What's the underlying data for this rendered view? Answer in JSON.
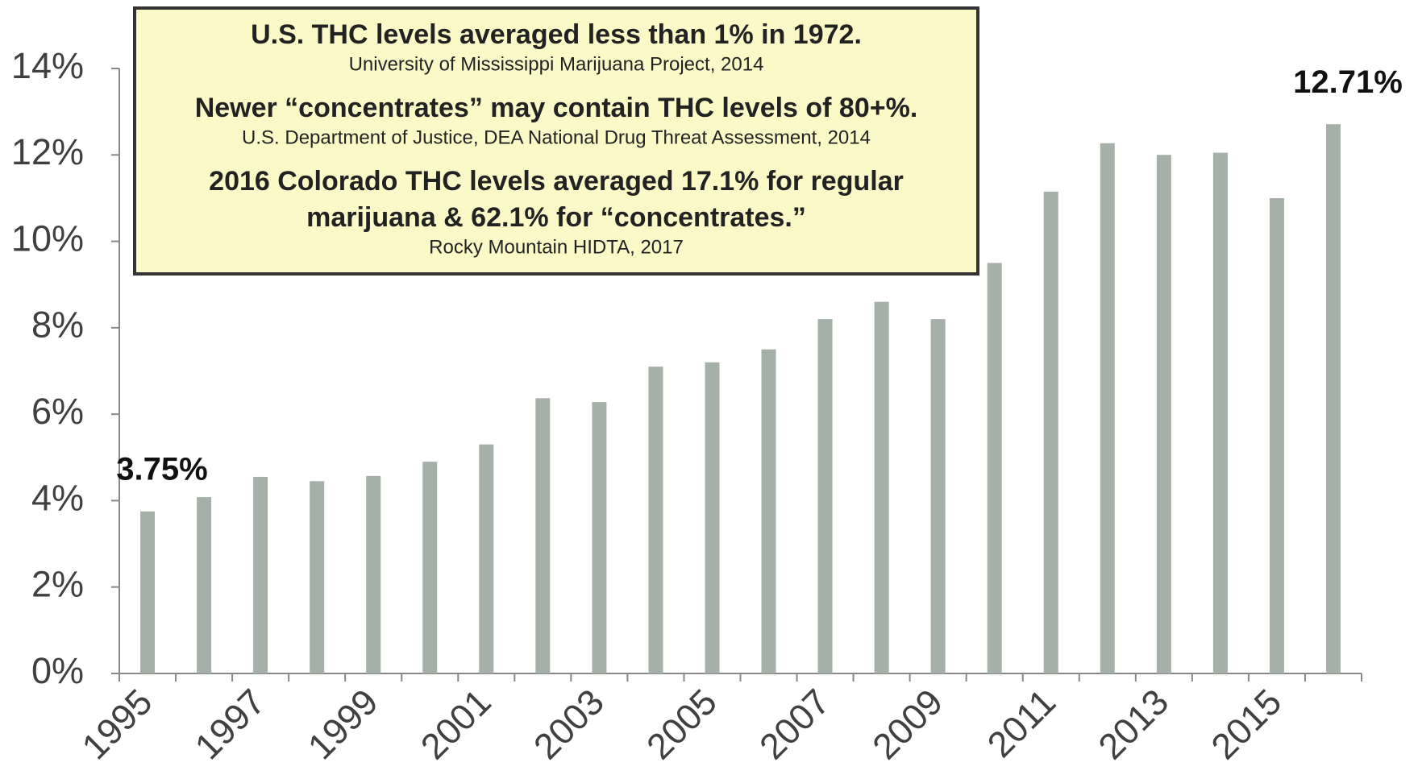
{
  "chart_data": {
    "type": "bar",
    "annotations": [
      {
        "lines": [
          "U.S. THC levels averaged less than 1% in 1972."
        ],
        "source": "University of Mississippi Marijuana Project, 2014"
      },
      {
        "lines": [
          "Newer “concentrates” may contain THC levels of 80+%."
        ],
        "source": "U.S. Department of Justice, DEA National Drug Threat Assessment, 2014"
      },
      {
        "lines": [
          "2016 Colorado THC levels averaged 17.1% for regular",
          "marijuana & 62.1% for “concentrates.”"
        ],
        "source": "Rocky Mountain HIDTA, 2017"
      }
    ],
    "categories": [
      "1995",
      null,
      "1997",
      null,
      "1999",
      null,
      "2001",
      null,
      "2003",
      null,
      "2005",
      null,
      "2007",
      null,
      "2009",
      null,
      "2011",
      null,
      "2013",
      null,
      "2015",
      null
    ],
    "values": [
      3.75,
      4.08,
      4.55,
      4.45,
      4.57,
      4.9,
      5.3,
      6.37,
      6.28,
      7.1,
      7.2,
      7.5,
      8.2,
      8.6,
      8.2,
      9.5,
      11.15,
      12.27,
      12.0,
      12.05,
      11.0,
      12.71
    ],
    "value_labels": [
      "3.75%",
      null,
      null,
      null,
      null,
      null,
      null,
      null,
      null,
      null,
      null,
      null,
      null,
      null,
      null,
      null,
      null,
      null,
      null,
      null,
      null,
      "12.71%"
    ],
    "color": "#a5b0a8",
    "ylim": [
      0,
      14
    ],
    "yticks": [
      {
        "value": 0,
        "label": "0%"
      },
      {
        "value": 2,
        "label": "2%"
      },
      {
        "value": 4,
        "label": "4%"
      },
      {
        "value": 6,
        "label": "6%"
      },
      {
        "value": 8,
        "label": "8%"
      },
      {
        "value": 10,
        "label": "10%"
      },
      {
        "value": 12,
        "label": "12%"
      },
      {
        "value": 14,
        "label": "14%"
      }
    ],
    "grid": false
  }
}
